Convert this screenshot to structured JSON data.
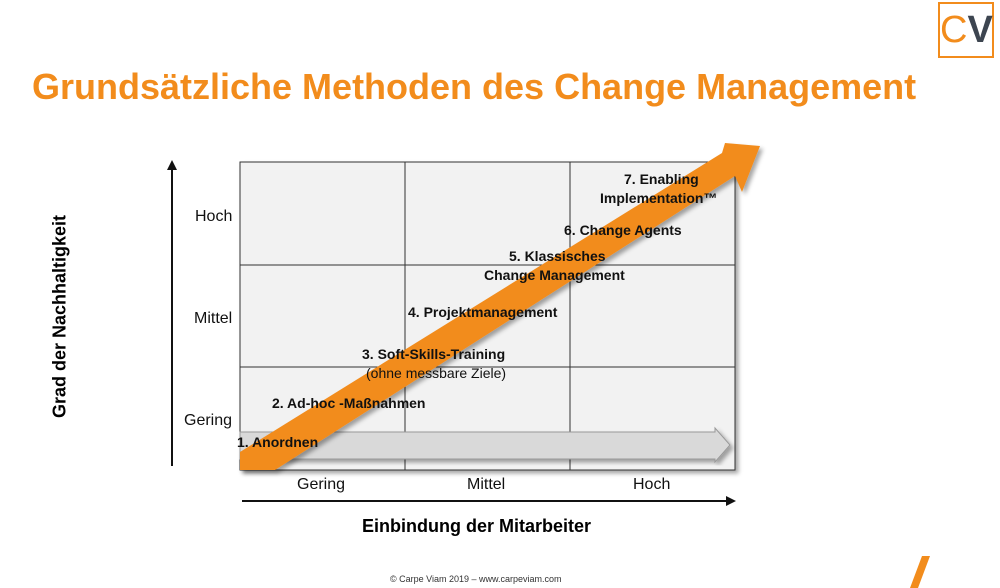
{
  "title": "Grundsätzliche Methoden des Change Management",
  "logo": {
    "c": "C",
    "v": "V"
  },
  "y_axis": {
    "label": "Grad der Nachhaltigkeit",
    "ticks": [
      "Hoch",
      "Mittel",
      "Gering"
    ]
  },
  "x_axis": {
    "label": "Einbindung der Mitarbeiter",
    "ticks": [
      "Gering",
      "Mittel",
      "Hoch"
    ]
  },
  "steps": [
    "1. Anordnen",
    "2. Ad-hoc -Maßnahmen",
    "3. Soft-Skills-Training",
    "(ohne messbare Ziele)",
    "4. Projektmanagement",
    "5. Klassisches",
    "Change Management",
    "6. Change Agents",
    "7. Enabling",
    "Implementation™"
  ],
  "footer": "© Carpe Viam 2019 – www.carpeviam.com",
  "colors": {
    "accent": "#f28c1c",
    "grid_fill": "#f2f2f2",
    "gray_arrow": "#d9d9d9"
  }
}
